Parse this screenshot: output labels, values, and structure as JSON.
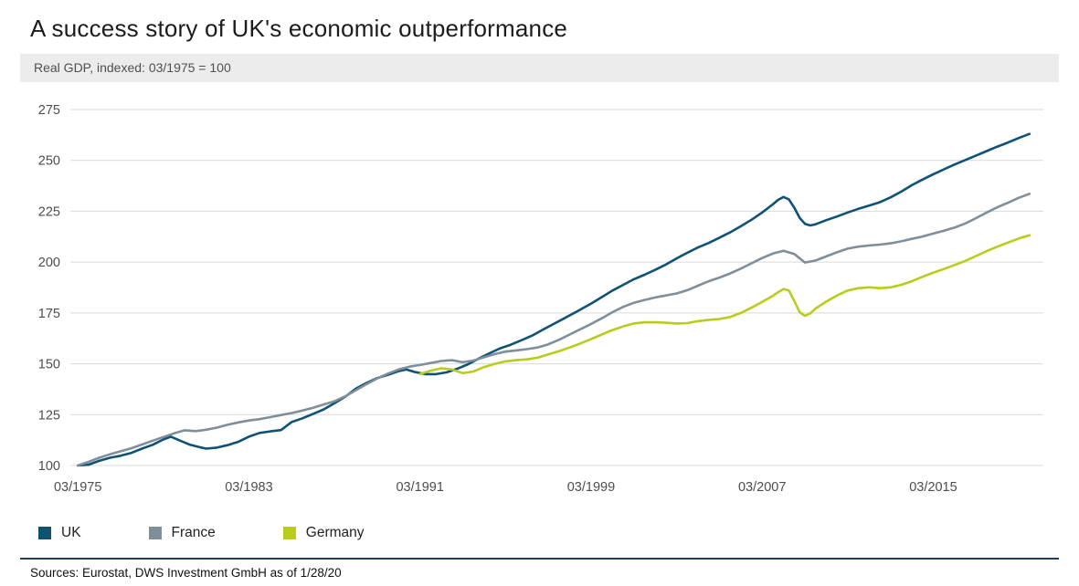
{
  "page": {
    "sources": "Sources: Eurostat, DWS Investment GmbH as of 1/28/20"
  },
  "colors": {
    "strip-bg": "#ececec",
    "divider": "#1e3d5c",
    "axis-text": "#4d4d4d"
  },
  "chart_data": {
    "type": "line",
    "title": "A success story of UK's economic outperformance",
    "subtitle": "Real GDP, indexed: 03/1975 = 100",
    "grid": "horizontal",
    "grid_color": "#d9d9d9",
    "legend_position": "bottom-left",
    "xlim": [
      1974.9,
      2020.4
    ],
    "x_axis": {
      "ticks": [
        {
          "x": 1975.25,
          "label": "03/1975"
        },
        {
          "x": 1983.25,
          "label": "03/1983"
        },
        {
          "x": 1991.25,
          "label": "03/1991"
        },
        {
          "x": 1999.25,
          "label": "03/1999"
        },
        {
          "x": 2007.25,
          "label": "03/2007"
        },
        {
          "x": 2015.25,
          "label": "03/2015"
        }
      ]
    },
    "y_axis": {
      "lim": [
        100,
        275
      ],
      "ticks": [
        100,
        125,
        150,
        175,
        200,
        225,
        250,
        275
      ]
    },
    "series": [
      {
        "name": "UK",
        "color": "#0f5274",
        "points": [
          [
            1975.25,
            100
          ],
          [
            1975.75,
            100.4
          ],
          [
            1976.25,
            102.3
          ],
          [
            1976.75,
            103.8
          ],
          [
            1977.25,
            104.8
          ],
          [
            1977.75,
            106.2
          ],
          [
            1978.25,
            108.3
          ],
          [
            1978.75,
            110.2
          ],
          [
            1979.25,
            112.8
          ],
          [
            1979.6,
            114.2
          ],
          [
            1980,
            112.4
          ],
          [
            1980.5,
            110.2
          ],
          [
            1981,
            108.9
          ],
          [
            1981.25,
            108.3
          ],
          [
            1981.75,
            108.8
          ],
          [
            1982.25,
            110
          ],
          [
            1982.75,
            111.6
          ],
          [
            1983.25,
            114.2
          ],
          [
            1983.75,
            116
          ],
          [
            1984.25,
            116.8
          ],
          [
            1984.75,
            117.4
          ],
          [
            1985.25,
            121.4
          ],
          [
            1985.75,
            123.2
          ],
          [
            1986.25,
            125.4
          ],
          [
            1986.75,
            127.6
          ],
          [
            1987.25,
            130.6
          ],
          [
            1987.75,
            133.8
          ],
          [
            1988.25,
            137.8
          ],
          [
            1988.75,
            140.6
          ],
          [
            1989.25,
            143
          ],
          [
            1989.75,
            144.6
          ],
          [
            1990.25,
            146.4
          ],
          [
            1990.6,
            147.2
          ],
          [
            1991,
            146
          ],
          [
            1991.5,
            144.9
          ],
          [
            1992,
            144.9
          ],
          [
            1992.5,
            145.8
          ],
          [
            1993,
            147.6
          ],
          [
            1993.5,
            149.8
          ],
          [
            1994,
            152.6
          ],
          [
            1994.5,
            155.2
          ],
          [
            1995,
            157.6
          ],
          [
            1995.5,
            159.4
          ],
          [
            1996,
            161.6
          ],
          [
            1996.5,
            163.9
          ],
          [
            1997,
            166.8
          ],
          [
            1997.5,
            169.6
          ],
          [
            1998,
            172.4
          ],
          [
            1998.5,
            175.2
          ],
          [
            1999.25,
            179.6
          ],
          [
            1999.75,
            182.8
          ],
          [
            2000.25,
            186
          ],
          [
            2000.75,
            188.8
          ],
          [
            2001.25,
            191.6
          ],
          [
            2001.75,
            193.8
          ],
          [
            2002.25,
            196.2
          ],
          [
            2002.75,
            198.8
          ],
          [
            2003.25,
            201.8
          ],
          [
            2003.75,
            204.6
          ],
          [
            2004.25,
            207.2
          ],
          [
            2004.75,
            209.4
          ],
          [
            2005.25,
            212
          ],
          [
            2005.75,
            214.6
          ],
          [
            2006.25,
            217.6
          ],
          [
            2006.75,
            220.8
          ],
          [
            2007.25,
            224.4
          ],
          [
            2007.75,
            228.4
          ],
          [
            2008,
            230.6
          ],
          [
            2008.25,
            232
          ],
          [
            2008.5,
            230.8
          ],
          [
            2008.75,
            226.8
          ],
          [
            2009,
            221.8
          ],
          [
            2009.25,
            218.8
          ],
          [
            2009.5,
            218
          ],
          [
            2009.75,
            218.6
          ],
          [
            2010.25,
            220.6
          ],
          [
            2010.75,
            222.4
          ],
          [
            2011.25,
            224.4
          ],
          [
            2011.75,
            226.2
          ],
          [
            2012.25,
            227.8
          ],
          [
            2012.75,
            229.4
          ],
          [
            2013.25,
            231.8
          ],
          [
            2013.75,
            234.6
          ],
          [
            2014.25,
            237.8
          ],
          [
            2014.75,
            240.6
          ],
          [
            2015.25,
            243.2
          ],
          [
            2015.75,
            245.6
          ],
          [
            2016.25,
            248
          ],
          [
            2016.75,
            250.2
          ],
          [
            2017.25,
            252.4
          ],
          [
            2017.75,
            254.6
          ],
          [
            2018.25,
            256.8
          ],
          [
            2018.75,
            258.8
          ],
          [
            2019.25,
            261
          ],
          [
            2019.75,
            263
          ]
        ]
      },
      {
        "name": "France",
        "color": "#7f8f9a",
        "points": [
          [
            1975.25,
            100
          ],
          [
            1975.75,
            101.8
          ],
          [
            1976.25,
            103.8
          ],
          [
            1976.75,
            105.5
          ],
          [
            1977.25,
            107
          ],
          [
            1977.75,
            108.5
          ],
          [
            1978.25,
            110.3
          ],
          [
            1978.75,
            112.2
          ],
          [
            1979.25,
            114
          ],
          [
            1979.75,
            115.8
          ],
          [
            1980.25,
            117.3
          ],
          [
            1980.75,
            116.9
          ],
          [
            1981.25,
            117.6
          ],
          [
            1981.75,
            118.6
          ],
          [
            1982.25,
            120
          ],
          [
            1982.75,
            121.2
          ],
          [
            1983.25,
            122.1
          ],
          [
            1983.75,
            122.8
          ],
          [
            1984.25,
            123.8
          ],
          [
            1984.75,
            124.8
          ],
          [
            1985.25,
            125.8
          ],
          [
            1985.75,
            127
          ],
          [
            1986.25,
            128.4
          ],
          [
            1986.75,
            130
          ],
          [
            1987.25,
            131.6
          ],
          [
            1987.75,
            134
          ],
          [
            1988.25,
            137
          ],
          [
            1988.75,
            140
          ],
          [
            1989.25,
            142.8
          ],
          [
            1989.75,
            145.2
          ],
          [
            1990.25,
            147.2
          ],
          [
            1990.75,
            148.6
          ],
          [
            1991.25,
            149.4
          ],
          [
            1991.75,
            150.4
          ],
          [
            1992.25,
            151.4
          ],
          [
            1992.75,
            151.8
          ],
          [
            1993.25,
            150.8
          ],
          [
            1993.75,
            151.6
          ],
          [
            1994.25,
            153.2
          ],
          [
            1994.75,
            154.8
          ],
          [
            1995.25,
            156
          ],
          [
            1995.75,
            156.6
          ],
          [
            1996.25,
            157.2
          ],
          [
            1996.75,
            158
          ],
          [
            1997.25,
            159.6
          ],
          [
            1997.75,
            161.8
          ],
          [
            1998.25,
            164.4
          ],
          [
            1998.75,
            167
          ],
          [
            1999.25,
            169.6
          ],
          [
            1999.75,
            172.4
          ],
          [
            2000.25,
            175.4
          ],
          [
            2000.75,
            178
          ],
          [
            2001.25,
            180
          ],
          [
            2001.75,
            181.4
          ],
          [
            2002.25,
            182.6
          ],
          [
            2002.75,
            183.6
          ],
          [
            2003.25,
            184.6
          ],
          [
            2003.75,
            186.2
          ],
          [
            2004.25,
            188.4
          ],
          [
            2004.75,
            190.6
          ],
          [
            2005.25,
            192.4
          ],
          [
            2005.75,
            194.4
          ],
          [
            2006.25,
            196.8
          ],
          [
            2006.75,
            199.4
          ],
          [
            2007.25,
            202
          ],
          [
            2007.75,
            204.2
          ],
          [
            2008.25,
            205.6
          ],
          [
            2008.75,
            204
          ],
          [
            2009.25,
            199.8
          ],
          [
            2009.75,
            200.8
          ],
          [
            2010.25,
            202.8
          ],
          [
            2010.75,
            204.8
          ],
          [
            2011.25,
            206.6
          ],
          [
            2011.75,
            207.6
          ],
          [
            2012.25,
            208.2
          ],
          [
            2012.75,
            208.6
          ],
          [
            2013.25,
            209.2
          ],
          [
            2013.75,
            210.2
          ],
          [
            2014.25,
            211.4
          ],
          [
            2014.75,
            212.6
          ],
          [
            2015.25,
            214
          ],
          [
            2015.75,
            215.4
          ],
          [
            2016.25,
            217
          ],
          [
            2016.75,
            219
          ],
          [
            2017.25,
            221.6
          ],
          [
            2017.75,
            224.4
          ],
          [
            2018.25,
            227
          ],
          [
            2018.75,
            229.2
          ],
          [
            2019.25,
            231.6
          ],
          [
            2019.75,
            233.6
          ]
        ]
      },
      {
        "name": "Germany",
        "color": "#b9cc1c",
        "points": [
          [
            1991.25,
            145
          ],
          [
            1991.75,
            146.6
          ],
          [
            1992.25,
            147.8
          ],
          [
            1992.75,
            147.2
          ],
          [
            1993.25,
            145.4
          ],
          [
            1993.75,
            146.2
          ],
          [
            1994.25,
            148.4
          ],
          [
            1994.75,
            150
          ],
          [
            1995.25,
            151.2
          ],
          [
            1995.75,
            151.8
          ],
          [
            1996.25,
            152.2
          ],
          [
            1996.75,
            153
          ],
          [
            1997.25,
            154.6
          ],
          [
            1997.75,
            156.2
          ],
          [
            1998.25,
            158
          ],
          [
            1998.75,
            160
          ],
          [
            1999.25,
            162.2
          ],
          [
            1999.75,
            164.4
          ],
          [
            2000.25,
            166.6
          ],
          [
            2000.75,
            168.4
          ],
          [
            2001.25,
            169.8
          ],
          [
            2001.75,
            170.4
          ],
          [
            2002.25,
            170.4
          ],
          [
            2002.75,
            170.2
          ],
          [
            2003.25,
            169.8
          ],
          [
            2003.75,
            170
          ],
          [
            2004.25,
            171
          ],
          [
            2004.75,
            171.6
          ],
          [
            2005.25,
            172
          ],
          [
            2005.75,
            173
          ],
          [
            2006.25,
            175
          ],
          [
            2006.75,
            177.6
          ],
          [
            2007.25,
            180.4
          ],
          [
            2007.75,
            183.4
          ],
          [
            2008,
            185.2
          ],
          [
            2008.25,
            186.8
          ],
          [
            2008.5,
            186
          ],
          [
            2008.75,
            181
          ],
          [
            2009,
            175.4
          ],
          [
            2009.25,
            173.6
          ],
          [
            2009.5,
            174.8
          ],
          [
            2009.75,
            177.2
          ],
          [
            2010.25,
            180.6
          ],
          [
            2010.75,
            183.6
          ],
          [
            2011.25,
            186
          ],
          [
            2011.75,
            187.2
          ],
          [
            2012.25,
            187.6
          ],
          [
            2012.75,
            187.2
          ],
          [
            2013.25,
            187.6
          ],
          [
            2013.75,
            188.8
          ],
          [
            2014.25,
            190.6
          ],
          [
            2014.75,
            192.8
          ],
          [
            2015.25,
            194.8
          ],
          [
            2015.75,
            196.6
          ],
          [
            2016.25,
            198.6
          ],
          [
            2016.75,
            200.6
          ],
          [
            2017.25,
            203
          ],
          [
            2017.75,
            205.4
          ],
          [
            2018.25,
            207.6
          ],
          [
            2018.75,
            209.6
          ],
          [
            2019.25,
            211.6
          ],
          [
            2019.75,
            213.2
          ]
        ]
      }
    ]
  }
}
